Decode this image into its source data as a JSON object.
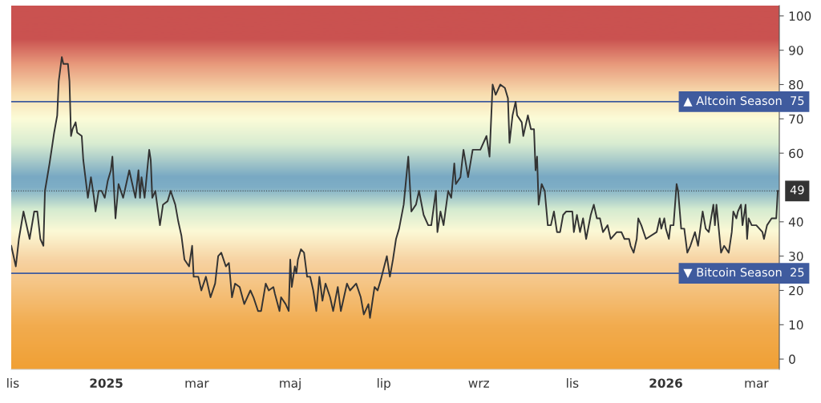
{
  "chart_data": {
    "type": "line",
    "ylim": [
      -3,
      103
    ],
    "yticks": [
      0,
      10,
      20,
      30,
      40,
      60,
      70,
      80,
      90,
      100
    ],
    "xlim": [
      "2024-10-31",
      "2026-03-16"
    ],
    "xticks": [
      {
        "value": "2024-11-01",
        "label": "lis"
      },
      {
        "value": "2025-01-01",
        "label": "2025"
      },
      {
        "value": "2025-03-01",
        "label": "mar"
      },
      {
        "value": "2025-05-01",
        "label": "maj"
      },
      {
        "value": "2025-07-01",
        "label": "lip"
      },
      {
        "value": "2025-09-01",
        "label": "wrz"
      },
      {
        "value": "2025-11-01",
        "label": "lis"
      },
      {
        "value": "2026-01-01",
        "label": "2026"
      },
      {
        "value": "2026-03-01",
        "label": "mar"
      }
    ],
    "grid": false,
    "marker": "none",
    "line_style": "solid",
    "ref_lines": [
      {
        "axis": "y",
        "value": 75,
        "label": "▲ Altcoin Season  75",
        "color": "#3f5b9e",
        "line_style": "solid"
      },
      {
        "axis": "y",
        "value": 25,
        "label": "▼ Bitcoin Season  25",
        "color": "#3f5b9e",
        "line_style": "solid"
      },
      {
        "axis": "y",
        "value": 49,
        "label": "49",
        "color": "#333333",
        "line_style": "dotted"
      }
    ],
    "series": [
      {
        "color": "#333333",
        "x": [
          "2024-10-31",
          "2024-11-03",
          "2024-11-05",
          "2024-11-08",
          "2024-11-11",
          "2024-11-12",
          "2024-11-15",
          "2024-11-17",
          "2024-11-19",
          "2024-11-21",
          "2024-11-22",
          "2024-11-25",
          "2024-11-27",
          "2024-11-28",
          "2024-11-30",
          "2024-12-01",
          "2024-12-03",
          "2024-12-04",
          "2024-12-07",
          "2024-12-08",
          "2024-12-09",
          "2024-12-10",
          "2024-12-12",
          "2024-12-13",
          "2024-12-16",
          "2024-12-17",
          "2024-12-20",
          "2024-12-22",
          "2024-12-24",
          "2024-12-25",
          "2024-12-27",
          "2024-12-29",
          "2024-12-31",
          "2025-01-02",
          "2025-01-04",
          "2025-01-05",
          "2025-01-07",
          "2025-01-09",
          "2025-01-12",
          "2025-01-14",
          "2025-01-16",
          "2025-01-18",
          "2025-01-20",
          "2025-01-22",
          "2025-01-23",
          "2025-01-24",
          "2025-01-26",
          "2025-01-29",
          "2025-01-30",
          "2025-01-31",
          "2025-02-02",
          "2025-02-05",
          "2025-02-07",
          "2025-02-10",
          "2025-02-12",
          "2025-02-15",
          "2025-02-17",
          "2025-02-19",
          "2025-02-21",
          "2025-02-24",
          "2025-02-26",
          "2025-02-27",
          "2025-03-02",
          "2025-03-04",
          "2025-03-07",
          "2025-03-10",
          "2025-03-13",
          "2025-03-15",
          "2025-03-17",
          "2025-03-20",
          "2025-03-22",
          "2025-03-24",
          "2025-03-26",
          "2025-03-29",
          "2025-04-01",
          "2025-04-05",
          "2025-04-07",
          "2025-04-10",
          "2025-04-12",
          "2025-04-15",
          "2025-04-17",
          "2025-04-20",
          "2025-04-21",
          "2025-04-24",
          "2025-04-25",
          "2025-04-28",
          "2025-04-30",
          "2025-05-01",
          "2025-05-02",
          "2025-05-04",
          "2025-05-05",
          "2025-05-06",
          "2025-05-08",
          "2025-05-10",
          "2025-05-12",
          "2025-05-14",
          "2025-05-16",
          "2025-05-18",
          "2025-05-20",
          "2025-05-22",
          "2025-05-24",
          "2025-05-27",
          "2025-05-29",
          "2025-06-01",
          "2025-06-03",
          "2025-06-07",
          "2025-06-09",
          "2025-06-13",
          "2025-06-16",
          "2025-06-18",
          "2025-06-21",
          "2025-06-22",
          "2025-06-25",
          "2025-06-27",
          "2025-06-29",
          "2025-07-03",
          "2025-07-05",
          "2025-07-07",
          "2025-07-09",
          "2025-07-11",
          "2025-07-14",
          "2025-07-17",
          "2025-07-19",
          "2025-07-22",
          "2025-07-24",
          "2025-07-27",
          "2025-07-30",
          "2025-08-01",
          "2025-08-04",
          "2025-08-05",
          "2025-08-07",
          "2025-08-09",
          "2025-08-12",
          "2025-08-14",
          "2025-08-16",
          "2025-08-17",
          "2025-08-20",
          "2025-08-22",
          "2025-08-25",
          "2025-08-28",
          "2025-09-02",
          "2025-09-06",
          "2025-09-08",
          "2025-09-10",
          "2025-09-12",
          "2025-09-15",
          "2025-09-18",
          "2025-09-20",
          "2025-09-21",
          "2025-09-23",
          "2025-09-25",
          "2025-09-26",
          "2025-09-29",
          "2025-09-30",
          "2025-10-03",
          "2025-10-05",
          "2025-10-07",
          "2025-10-08",
          "2025-10-09",
          "2025-10-10",
          "2025-10-12",
          "2025-10-14",
          "2025-10-16",
          "2025-10-18",
          "2025-10-20",
          "2025-10-22",
          "2025-10-24",
          "2025-10-26",
          "2025-10-28",
          "2025-11-01",
          "2025-11-02",
          "2025-11-04",
          "2025-11-06",
          "2025-11-08",
          "2025-11-10",
          "2025-11-13",
          "2025-11-15",
          "2025-11-17",
          "2025-11-19",
          "2025-11-21",
          "2025-11-24",
          "2025-11-25",
          "2025-11-26",
          "2025-11-30",
          "2025-12-03",
          "2025-12-05",
          "2025-12-08",
          "2025-12-09",
          "2025-12-11",
          "2025-12-13",
          "2025-12-14",
          "2025-12-16",
          "2025-12-19",
          "2025-12-26",
          "2025-12-28",
          "2025-12-29",
          "2025-12-31",
          "2026-01-01",
          "2026-01-03",
          "2026-01-04",
          "2026-01-06",
          "2026-01-08",
          "2026-01-09",
          "2026-01-11",
          "2026-01-13",
          "2026-01-15",
          "2026-01-17",
          "2026-01-20",
          "2026-01-22",
          "2026-01-25",
          "2026-01-27",
          "2026-01-29",
          "2026-02-01",
          "2026-02-02",
          "2026-02-03",
          "2026-02-06",
          "2026-02-08",
          "2026-02-11",
          "2026-02-13",
          "2026-02-14",
          "2026-02-16",
          "2026-02-17",
          "2026-02-19",
          "2026-02-20",
          "2026-02-22",
          "2026-02-23",
          "2026-02-24",
          "2026-02-26",
          "2026-03-01",
          "2026-03-05",
          "2026-03-06",
          "2026-03-08",
          "2026-03-11",
          "2026-03-14",
          "2026-03-15"
        ],
        "values": [
          33,
          27,
          35,
          43,
          37,
          35,
          43,
          43,
          35,
          33,
          49,
          57,
          63,
          66,
          71,
          81,
          88,
          86,
          86,
          81,
          65,
          67,
          69,
          66,
          65,
          58,
          47,
          53,
          47,
          43,
          49,
          49,
          47,
          52,
          55,
          59,
          41,
          51,
          47,
          51,
          55,
          51,
          47,
          55,
          47,
          53,
          47,
          61,
          58,
          47,
          49,
          39,
          45,
          46,
          49,
          45,
          40,
          36,
          29,
          27,
          33,
          24,
          24,
          20,
          24,
          18,
          22,
          30,
          31,
          27,
          28,
          18,
          22,
          21,
          16,
          20,
          18,
          14,
          14,
          22,
          20,
          21,
          19,
          14,
          18,
          16,
          14,
          29,
          21,
          27,
          25,
          29,
          32,
          31,
          24,
          24,
          20,
          14,
          24,
          17,
          22,
          18,
          14,
          21,
          14,
          22,
          20,
          22,
          18,
          13,
          16,
          12,
          21,
          20,
          23,
          30,
          24,
          29,
          35,
          38,
          45,
          59,
          43,
          45,
          49,
          42,
          39,
          39,
          49,
          37,
          43,
          39,
          49,
          47,
          57,
          51,
          53,
          61,
          53,
          61,
          61,
          65,
          59,
          80,
          77,
          80,
          79,
          76,
          63,
          71,
          75,
          71,
          69,
          65,
          71,
          67,
          67,
          55,
          59,
          45,
          51,
          49,
          39,
          39,
          43,
          37,
          37,
          42,
          43,
          43,
          37,
          42,
          37,
          41,
          35,
          42,
          45,
          41,
          41,
          37,
          39,
          37,
          35,
          37,
          37,
          35,
          35,
          33,
          31,
          35,
          41,
          39,
          35,
          37,
          41,
          38,
          41,
          38,
          35,
          39,
          39,
          51,
          49,
          38,
          38,
          31,
          33,
          37,
          33,
          43,
          38,
          37,
          45,
          39,
          45,
          31,
          33,
          31,
          37,
          43,
          41,
          43,
          45,
          39,
          45,
          35,
          41,
          39,
          39,
          37,
          35,
          39,
          41,
          41,
          49
        ]
      }
    ]
  }
}
